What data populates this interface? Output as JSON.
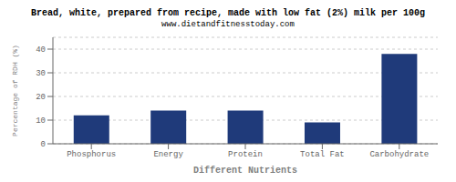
{
  "chart_data": {
    "type": "bar",
    "title": "Bread, white, prepared from recipe, made with low fat (2%) milk per 100g",
    "subtitle": "www.dietandfitnesstoday.com",
    "categories": [
      "Phosphorus",
      "Energy",
      "Protein",
      "Total Fat",
      "Carbohydrate"
    ],
    "values": [
      12,
      14,
      14,
      9,
      38
    ],
    "color": "#1F3A7A",
    "xlabel": "Different Nutrients",
    "ylabel": "Percentage of RDH (%)",
    "ylim": [
      0,
      45
    ],
    "yticks": [
      0,
      10,
      20,
      30,
      40
    ],
    "grid": true
  }
}
